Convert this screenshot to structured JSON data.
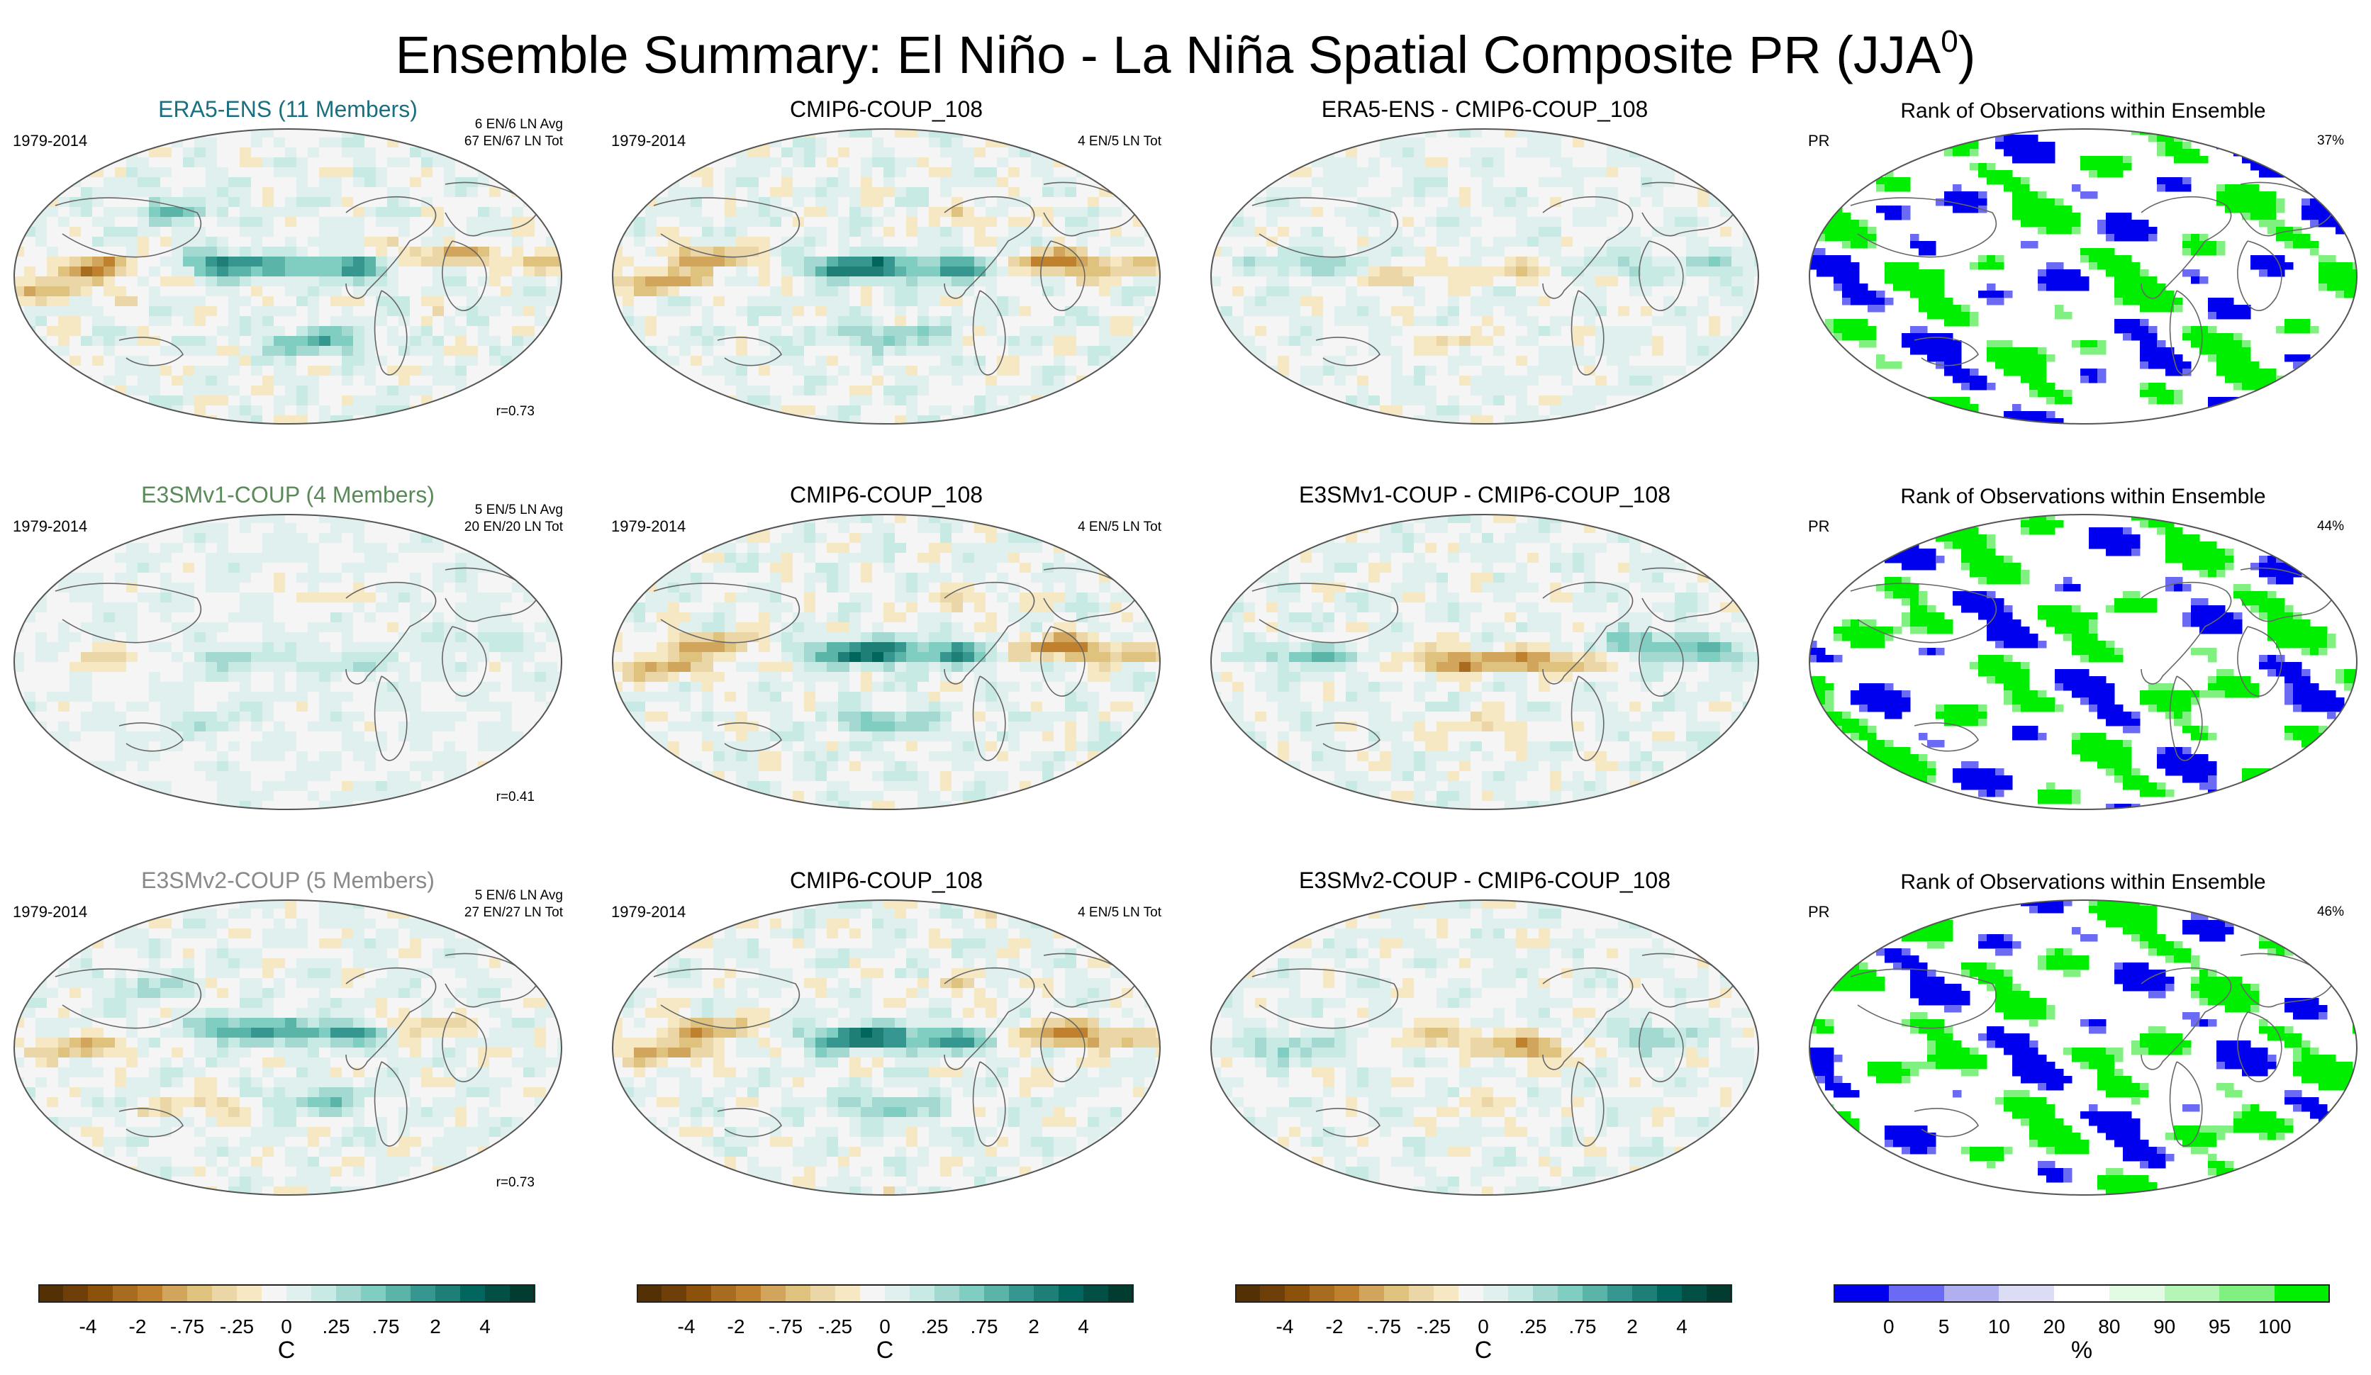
{
  "title": {
    "main": "Ensemble Summary: El Niño - La Niña Spatial Composite PR (JJA",
    "sup": "0",
    "close": ")"
  },
  "rows": [
    {
      "obs": {
        "title": "ERA5-ENS (11 Members)",
        "title_color": "#1a7080",
        "period": "1979-2014",
        "avg": "6 EN/6 LN Avg",
        "tot": "67 EN/67 LN Tot",
        "r": "r=0.73",
        "pattern": "obs1"
      },
      "model": {
        "title": "CMIP6-COUP_108",
        "period": "1979-2014",
        "tot": "4 EN/5 LN Tot",
        "pattern": "model"
      },
      "diff": {
        "title": "ERA5-ENS - CMIP6-COUP_108",
        "pattern": "diff1"
      },
      "rank": {
        "title": "Rank of Observations within Ensemble",
        "var": "PR",
        "pct": "37%",
        "seed": 11
      }
    },
    {
      "obs": {
        "title": "E3SMv1-COUP (4 Members)",
        "title_color": "#5a8a5a",
        "period": "1979-2014",
        "avg": "5 EN/5 LN Avg",
        "tot": "20 EN/20 LN Tot",
        "r": "r=0.41",
        "pattern": "obs2"
      },
      "model": {
        "title": "CMIP6-COUP_108",
        "period": "1979-2014",
        "tot": "4 EN/5 LN Tot",
        "pattern": "model"
      },
      "diff": {
        "title": "E3SMv1-COUP - CMIP6-COUP_108",
        "pattern": "diff2"
      },
      "rank": {
        "title": "Rank of Observations within Ensemble",
        "var": "PR",
        "pct": "44%",
        "seed": 23
      }
    },
    {
      "obs": {
        "title": "E3SMv2-COUP (5 Members)",
        "title_color": "#8a8a8a",
        "period": "1979-2014",
        "avg": "5 EN/6 LN Avg",
        "tot": "27 EN/27 LN Tot",
        "r": "r=0.73",
        "pattern": "obs3"
      },
      "model": {
        "title": "CMIP6-COUP_108",
        "period": "1979-2014",
        "tot": "4 EN/5 LN Tot",
        "pattern": "model"
      },
      "diff": {
        "title": "E3SMv2-COUP - CMIP6-COUP_108",
        "pattern": "diff3"
      },
      "rank": {
        "title": "Rank of Observations within Ensemble",
        "var": "PR",
        "pct": "46%",
        "seed": 37
      }
    }
  ],
  "chart_data": {
    "type": "heatmap",
    "projection": "Robinson-like global maps, 3x4 panel grid",
    "anomaly_colorbar": {
      "levels": [
        "-4",
        "-2",
        "-.75",
        "-.25",
        "0",
        ".25",
        ".75",
        "2",
        "4"
      ],
      "colors": [
        "#543005",
        "#6f3f09",
        "#8c510a",
        "#a86c20",
        "#bf812d",
        "#d1a55c",
        "#dfc27d",
        "#ead6a6",
        "#f6e8c3",
        "#f5f5f5",
        "#dff0ee",
        "#c7eae5",
        "#a3d9d1",
        "#80cdc1",
        "#5ab4a8",
        "#35978f",
        "#1e7f77",
        "#01665e",
        "#014f45",
        "#003c30"
      ],
      "unit": "C"
    },
    "rank_colorbar": {
      "levels": [
        "0",
        "5",
        "10",
        "20",
        "80",
        "90",
        "95",
        "100"
      ],
      "colors": [
        "#0000ee",
        "#6a6af5",
        "#b0b0f0",
        "#dcdcf5",
        "#ffffff",
        "#e2f9e2",
        "#b5f5b5",
        "#80f080",
        "#00ee00"
      ],
      "unit": "%"
    },
    "rank_percentages": [
      "37%",
      "44%",
      "46%"
    ],
    "correlations": [
      "r=0.73",
      "r=0.41",
      "r=0.73"
    ]
  }
}
